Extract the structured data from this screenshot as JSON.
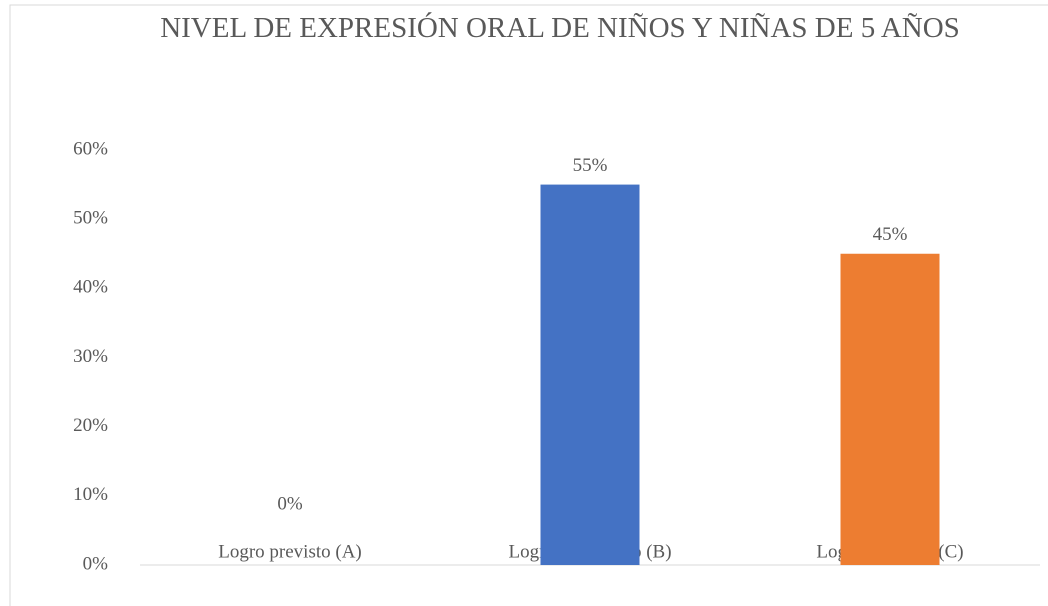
{
  "chart_data": {
    "type": "bar",
    "title": "NIVEL DE EXPRESIÓN ORAL DE NIÑOS Y NIÑAS DE 5 AÑOS",
    "categories": [
      "Logro previsto (A)",
      "Logro en proceso (B)",
      "Logro en inicio (C)"
    ],
    "values": [
      0,
      55,
      45
    ],
    "value_labels": [
      "0%",
      "55%",
      "45%"
    ],
    "colors": [
      "#a5a5a5",
      "#4472c4",
      "#ed7d31"
    ],
    "ylim": [
      0,
      60
    ],
    "yticks": [
      {
        "value": 0,
        "label": "0%"
      },
      {
        "value": 10,
        "label": "10%"
      },
      {
        "value": 20,
        "label": "20%"
      },
      {
        "value": 30,
        "label": "30%"
      },
      {
        "value": 40,
        "label": "40%"
      },
      {
        "value": 50,
        "label": "50%"
      },
      {
        "value": 60,
        "label": "60%"
      }
    ],
    "grid": false
  }
}
